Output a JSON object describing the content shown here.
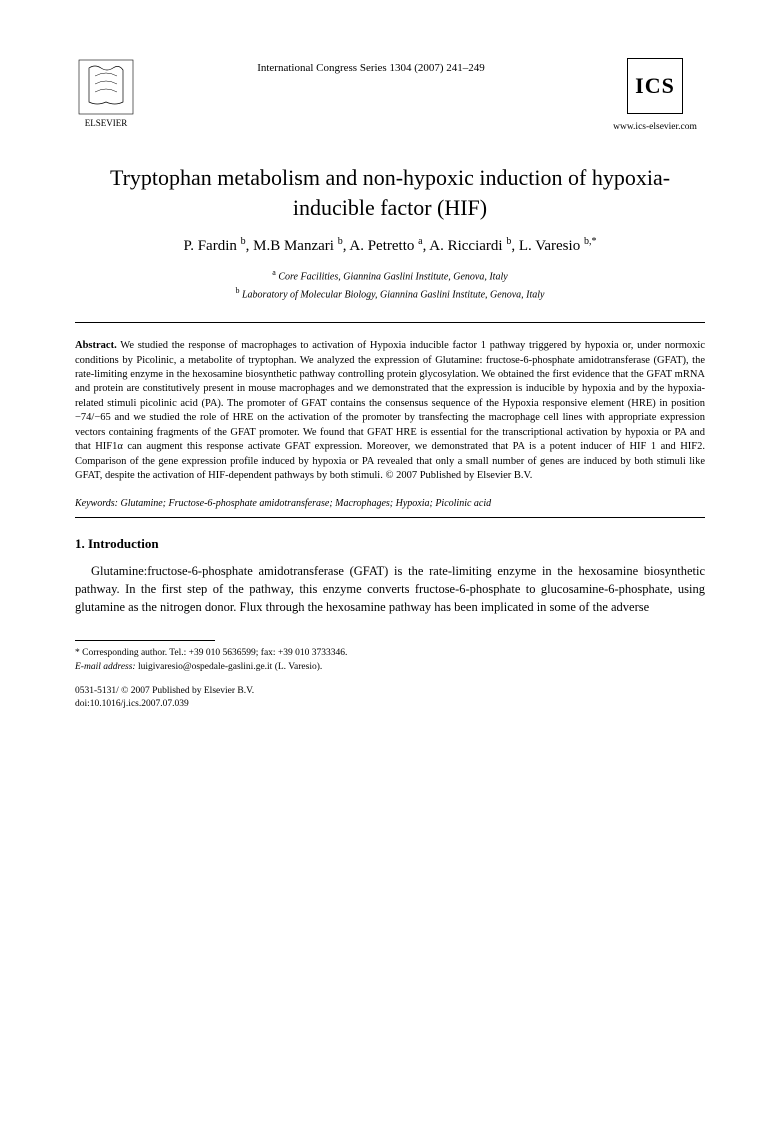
{
  "header": {
    "journal_line": "International Congress Series 1304 (2007) 241–249",
    "ics_label": "ICS",
    "ics_url": "www.ics-elsevier.com",
    "elsevier_label": "ELSEVIER"
  },
  "title": "Tryptophan metabolism and non-hypoxic induction of hypoxia-inducible factor (HIF)",
  "authors_html": "P. Fardin <sup>b</sup>, M.B Manzari <sup>b</sup>, A. Petretto <sup>a</sup>, A. Ricciardi <sup>b</sup>, L. Varesio <sup>b,*</sup>",
  "affiliations": {
    "a": "Core Facilities, Giannina Gaslini Institute, Genova, Italy",
    "b": "Laboratory of Molecular Biology, Giannina Gaslini Institute, Genova, Italy"
  },
  "abstract": {
    "label": "Abstract.",
    "text": "We studied the response of macrophages to activation of Hypoxia inducible factor 1 pathway triggered by hypoxia or, under normoxic conditions by Picolinic, a metabolite of tryptophan. We analyzed the expression of Glutamine: fructose-6-phosphate amidotransferase (GFAT), the rate-limiting enzyme in the hexosamine biosynthetic pathway controlling protein glycosylation. We obtained the first evidence that the GFAT mRNA and protein are constitutively present in mouse macrophages and we demonstrated that the expression is inducible by hypoxia and by the hypoxia-related stimuli picolinic acid (PA). The promoter of GFAT contains the consensus sequence of the Hypoxia responsive element (HRE) in position −74/−65 and we studied the role of HRE on the activation of the promoter by transfecting the macrophage cell lines with appropriate expression vectors containing fragments of the GFAT promoter. We found that GFAT HRE is essential for the transcriptional activation by hypoxia or PA and that HIF1α can augment this response activate GFAT expression. Moreover, we demonstrated that PA is a potent inducer of HIF 1 and HIF2. Comparison of the gene expression profile induced by hypoxia or PA revealed that only a small number of genes are induced by both stimuli like GFAT, despite the activation of HIF-dependent pathways by both stimuli. © 2007 Published by Elsevier B.V."
  },
  "keywords": {
    "label": "Keywords:",
    "text": "Glutamine; Fructose-6-phosphate amidotransferase; Macrophages; Hypoxia; Picolinic acid"
  },
  "section1": {
    "heading": "1. Introduction",
    "para1": "Glutamine:fructose-6-phosphate amidotransferase (GFAT) is the rate-limiting enzyme in the hexosamine biosynthetic pathway. In the first step of the pathway, this enzyme converts fructose-6-phosphate to glucosamine-6-phosphate, using glutamine as the nitrogen donor. Flux through the hexosamine pathway has been implicated in some of the adverse"
  },
  "footnote": {
    "corresponding": "* Corresponding author. Tel.: +39 010 5636599; fax: +39 010 3733346.",
    "email_label": "E-mail address:",
    "email": "luigivaresio@ospedale-gaslini.ge.it",
    "email_name": "(L. Varesio)."
  },
  "bottom": {
    "issn": "0531-5131/ © 2007 Published by Elsevier B.V.",
    "doi": "doi:10.1016/j.ics.2007.07.039"
  },
  "colors": {
    "text": "#000000",
    "background": "#ffffff",
    "link": "#0000cc"
  },
  "fonts": {
    "title_size": 22,
    "author_size": 15,
    "body_size": 12.5,
    "abstract_size": 10.5,
    "footnote_size": 9.5
  }
}
